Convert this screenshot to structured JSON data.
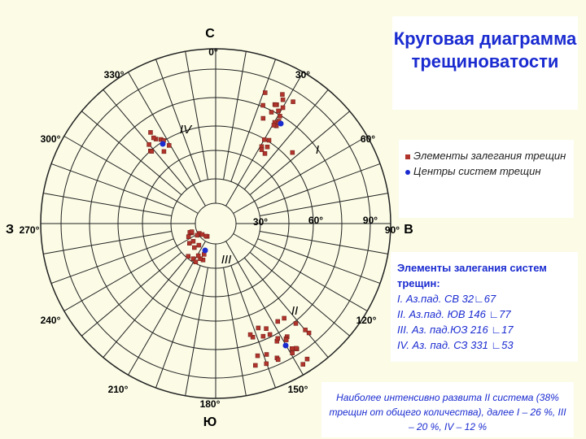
{
  "diagram": {
    "directions": {
      "north": "С",
      "east": "В",
      "south": "Ю",
      "west": "З"
    },
    "azimuth_labels": [
      "0°",
      "30°",
      "60°",
      "90°",
      "120°",
      "150°",
      "180°",
      "210°",
      "240°",
      "270°",
      "300°",
      "330°"
    ],
    "dip_labels": [
      "30°",
      "60°",
      "90°"
    ],
    "system_labels": [
      "I",
      "II",
      "III",
      "IV"
    ]
  },
  "title": "Круговая диаграмма трещиноватости",
  "legend": [
    "Элементы залегания трещин",
    "Центры систем трещин"
  ],
  "systems": {
    "heading": "Элементы залегания систем трещин:",
    "items": [
      "I. Аз.пад. СВ 32∟67",
      "II. Аз.пад. ЮВ 146 ∟77",
      "III. Аз. пад.ЮЗ 216 ∟17",
      "IV. Аз. пад. СЗ 331 ∟53"
    ]
  },
  "note": "Наиболее интенсивно развита II система (38% трещин от общего количества), далее I – 26 %, III – 20 %, IV – 12 %"
}
